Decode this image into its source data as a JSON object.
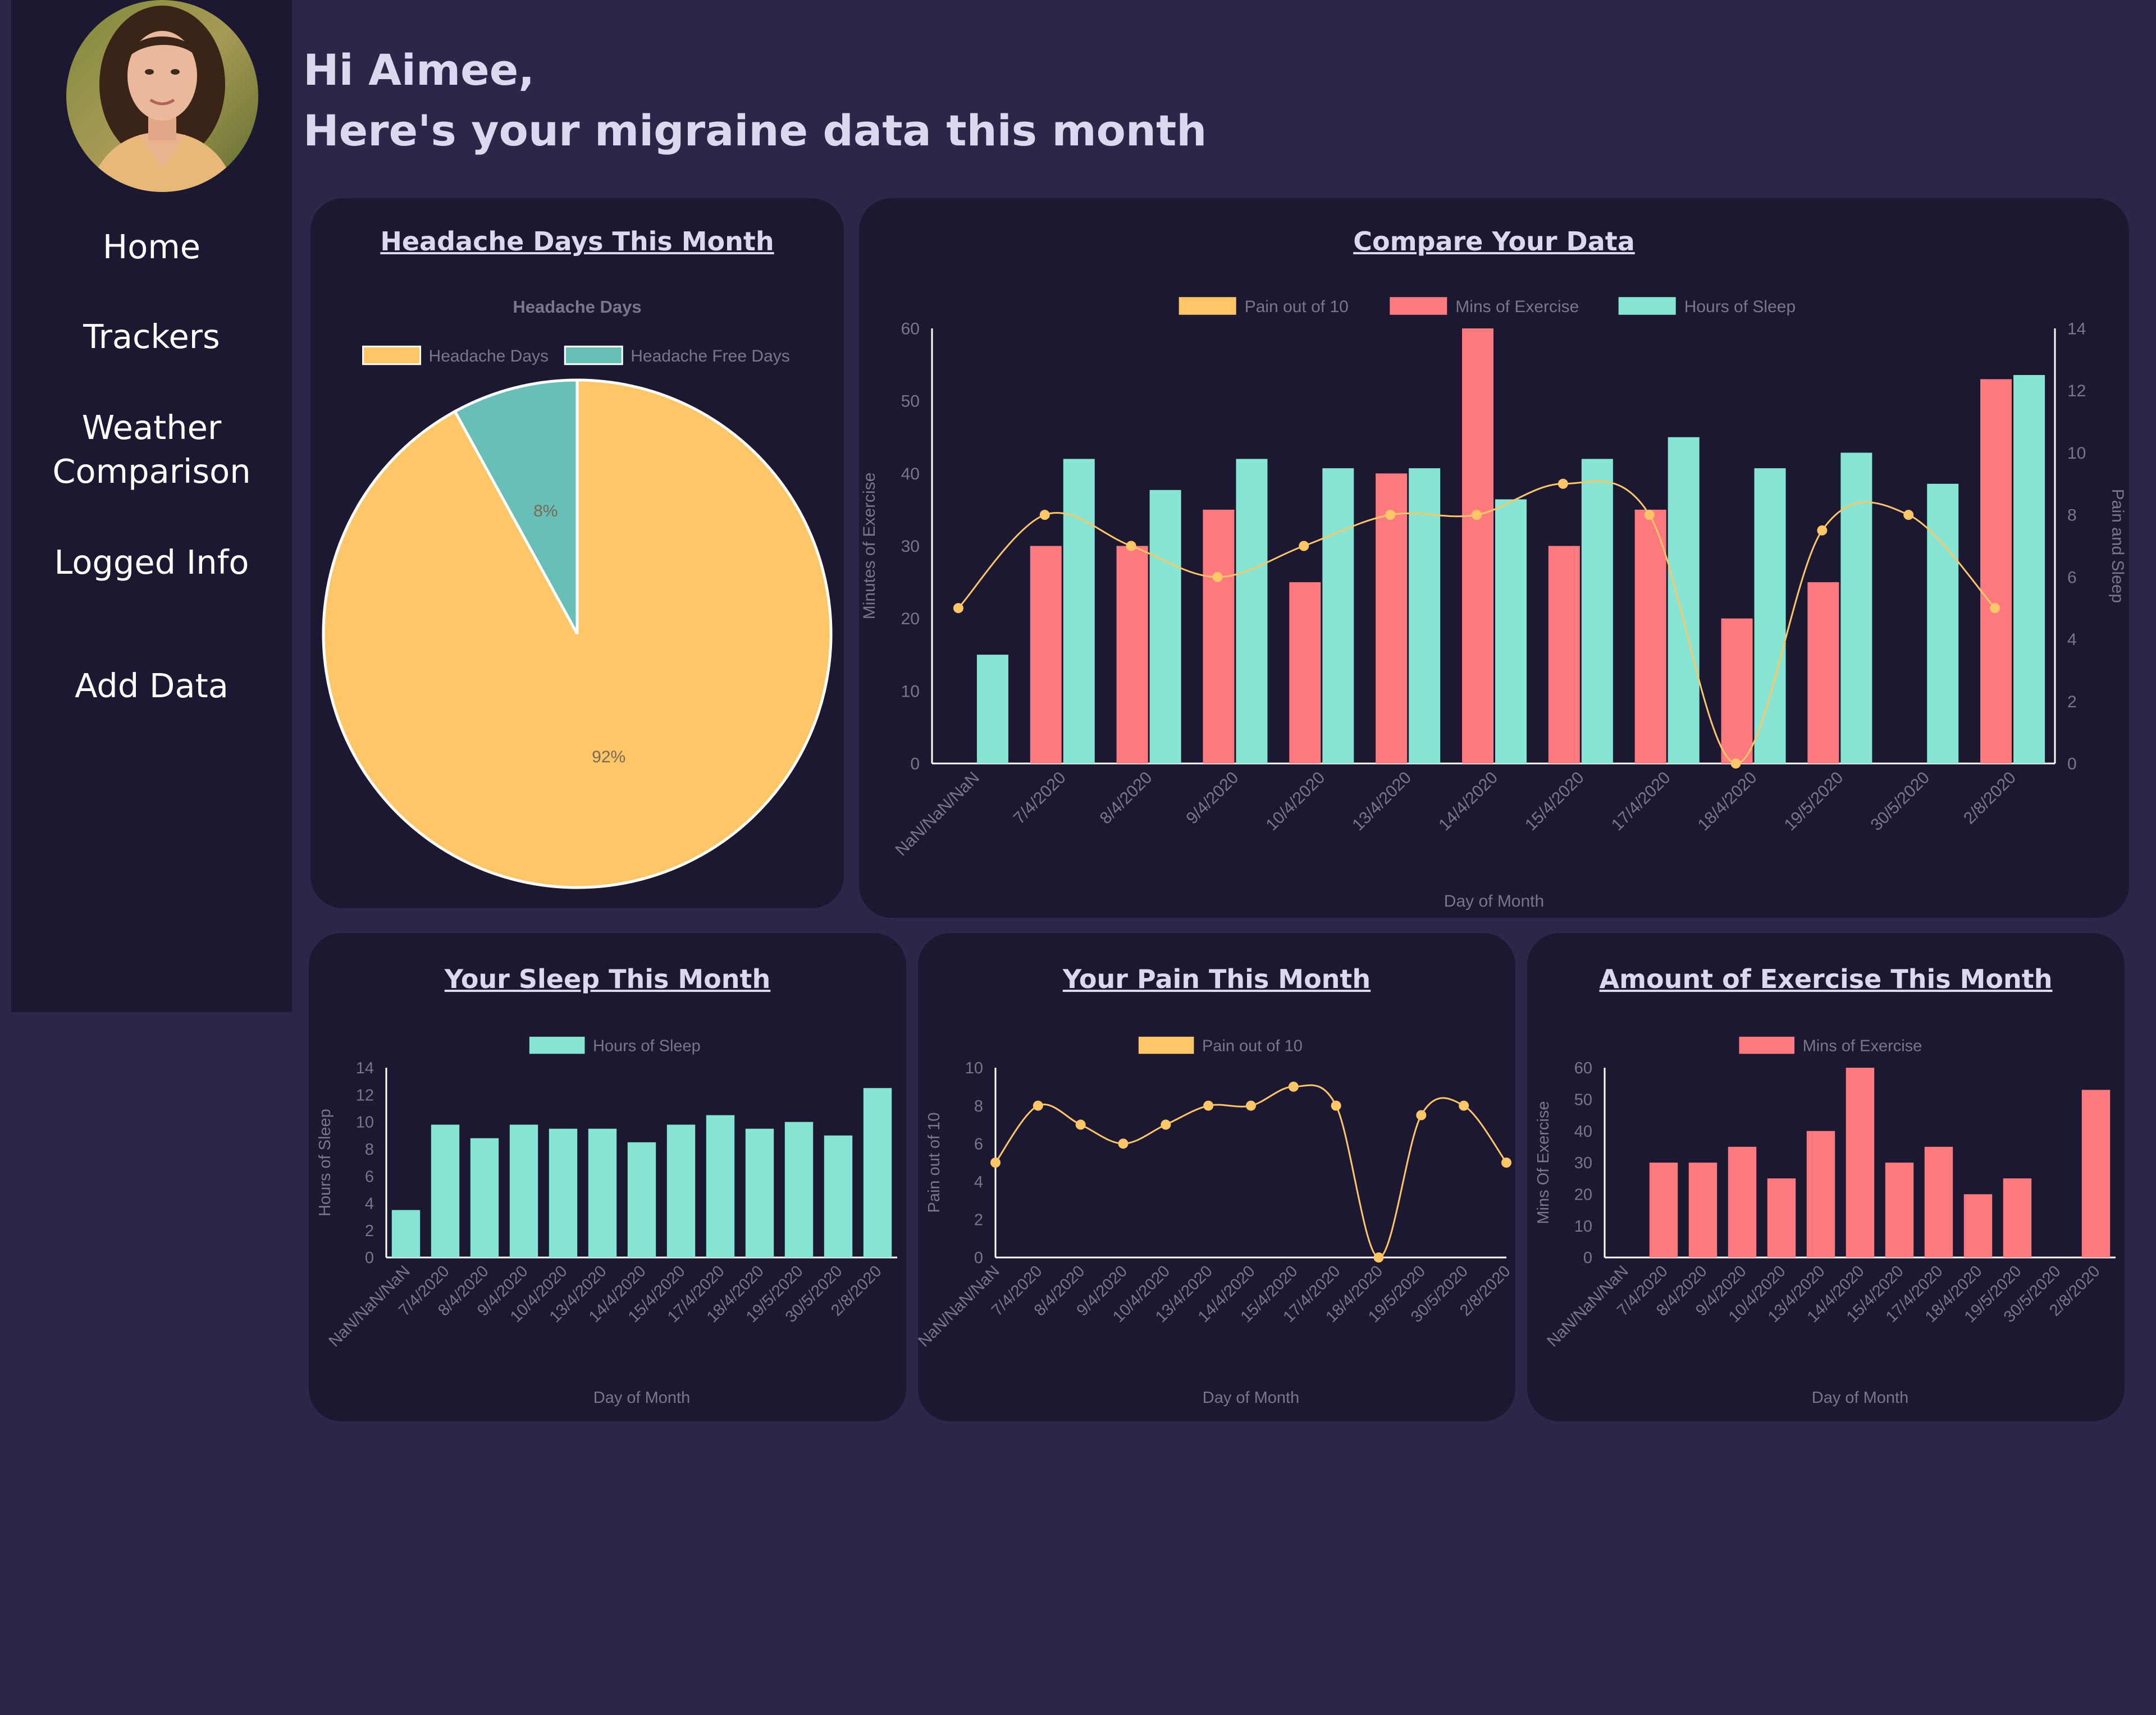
{
  "user": {
    "greeting": "Hi Aimee,",
    "subtitle": "Here's your migraine data this month"
  },
  "nav": {
    "items": [
      {
        "label": "Home"
      },
      {
        "label": "Trackers"
      },
      {
        "label": "Weather"
      },
      {
        "label": "Comparison"
      },
      {
        "label": "Logged Info"
      },
      {
        "label": "Add Data"
      }
    ]
  },
  "colors": {
    "pain": "#fec667",
    "exercise": "#fe7a7e",
    "sleep": "#86e6d3",
    "headache_free": "#68bfb8",
    "background": "#2e2648",
    "panel": "#1c1832"
  },
  "cards": {
    "headache_title": "Headache Days This Month",
    "compare_title": "Compare Your Data",
    "sleep_title": "Your Sleep This Month",
    "pain_title": "Your Pain This Month",
    "exercise_title": "Amount of Exercise This Month"
  },
  "chart_data": [
    {
      "type": "pie",
      "title": "Headache Days",
      "legend": [
        "Headache Days",
        "Headache Free Days"
      ],
      "values": [
        92,
        8
      ],
      "labels": [
        "92%",
        "8%"
      ],
      "legend_position": "top"
    },
    {
      "type": "bar",
      "categories": [
        "NaN/NaN/NaN",
        "7/4/2020",
        "8/4/2020",
        "9/4/2020",
        "10/4/2020",
        "13/4/2020",
        "14/4/2020",
        "15/4/2020",
        "17/4/2020",
        "18/4/2020",
        "19/5/2020",
        "30/5/2020",
        "2/8/2020"
      ],
      "series": [
        {
          "name": "Pain out of 10",
          "kind": "line",
          "axis": "right",
          "values": [
            5,
            8,
            7,
            6,
            7,
            8,
            8,
            9,
            8,
            0,
            7.5,
            8,
            5
          ]
        },
        {
          "name": "Mins of Exercise",
          "kind": "bar",
          "axis": "left",
          "values": [
            0,
            30,
            30,
            35,
            25,
            40,
            60,
            30,
            35,
            20,
            25,
            0,
            53
          ]
        },
        {
          "name": "Hours of Sleep",
          "kind": "bar",
          "axis": "right",
          "values": [
            3.5,
            9.8,
            8.8,
            9.8,
            9.5,
            9.5,
            8.5,
            9.8,
            10.5,
            9.5,
            10,
            9,
            12.5
          ]
        }
      ],
      "xlabel": "Day of Month",
      "ylabel": "Minutes of Exercise",
      "y2label": "Pain and Sleep",
      "ylim": [
        0,
        60
      ],
      "y2lim": [
        0,
        14
      ],
      "legend_position": "top"
    },
    {
      "type": "bar",
      "categories": [
        "NaN/NaN/NaN",
        "7/4/2020",
        "8/4/2020",
        "9/4/2020",
        "10/4/2020",
        "13/4/2020",
        "14/4/2020",
        "15/4/2020",
        "17/4/2020",
        "18/4/2020",
        "19/5/2020",
        "30/5/2020",
        "2/8/2020"
      ],
      "series": [
        {
          "name": "Hours of Sleep",
          "values": [
            3.5,
            9.8,
            8.8,
            9.8,
            9.5,
            9.5,
            8.5,
            9.8,
            10.5,
            9.5,
            10,
            9,
            12.5
          ]
        }
      ],
      "xlabel": "Day of Month",
      "ylabel": "Hours of Sleep",
      "ylim": [
        0,
        14
      ],
      "legend_position": "top"
    },
    {
      "type": "line",
      "categories": [
        "NaN/NaN/NaN",
        "7/4/2020",
        "8/4/2020",
        "9/4/2020",
        "10/4/2020",
        "13/4/2020",
        "14/4/2020",
        "15/4/2020",
        "17/4/2020",
        "18/4/2020",
        "19/5/2020",
        "30/5/2020",
        "2/8/2020"
      ],
      "series": [
        {
          "name": "Pain out of 10",
          "values": [
            5,
            8,
            7,
            6,
            7,
            8,
            8,
            9,
            8,
            0,
            7.5,
            8,
            5
          ]
        }
      ],
      "xlabel": "Day of Month",
      "ylabel": "Pain out of 10",
      "ylim": [
        0,
        10
      ],
      "legend_position": "top"
    },
    {
      "type": "bar",
      "categories": [
        "NaN/NaN/NaN",
        "7/4/2020",
        "8/4/2020",
        "9/4/2020",
        "10/4/2020",
        "13/4/2020",
        "14/4/2020",
        "15/4/2020",
        "17/4/2020",
        "18/4/2020",
        "19/5/2020",
        "30/5/2020",
        "2/8/2020"
      ],
      "series": [
        {
          "name": "Mins of Exercise",
          "values": [
            0,
            30,
            30,
            35,
            25,
            40,
            60,
            30,
            35,
            20,
            25,
            0,
            53
          ]
        }
      ],
      "xlabel": "Day of Month",
      "ylabel": "Mins Of Exercise",
      "ylim": [
        0,
        60
      ],
      "legend_position": "top"
    }
  ]
}
